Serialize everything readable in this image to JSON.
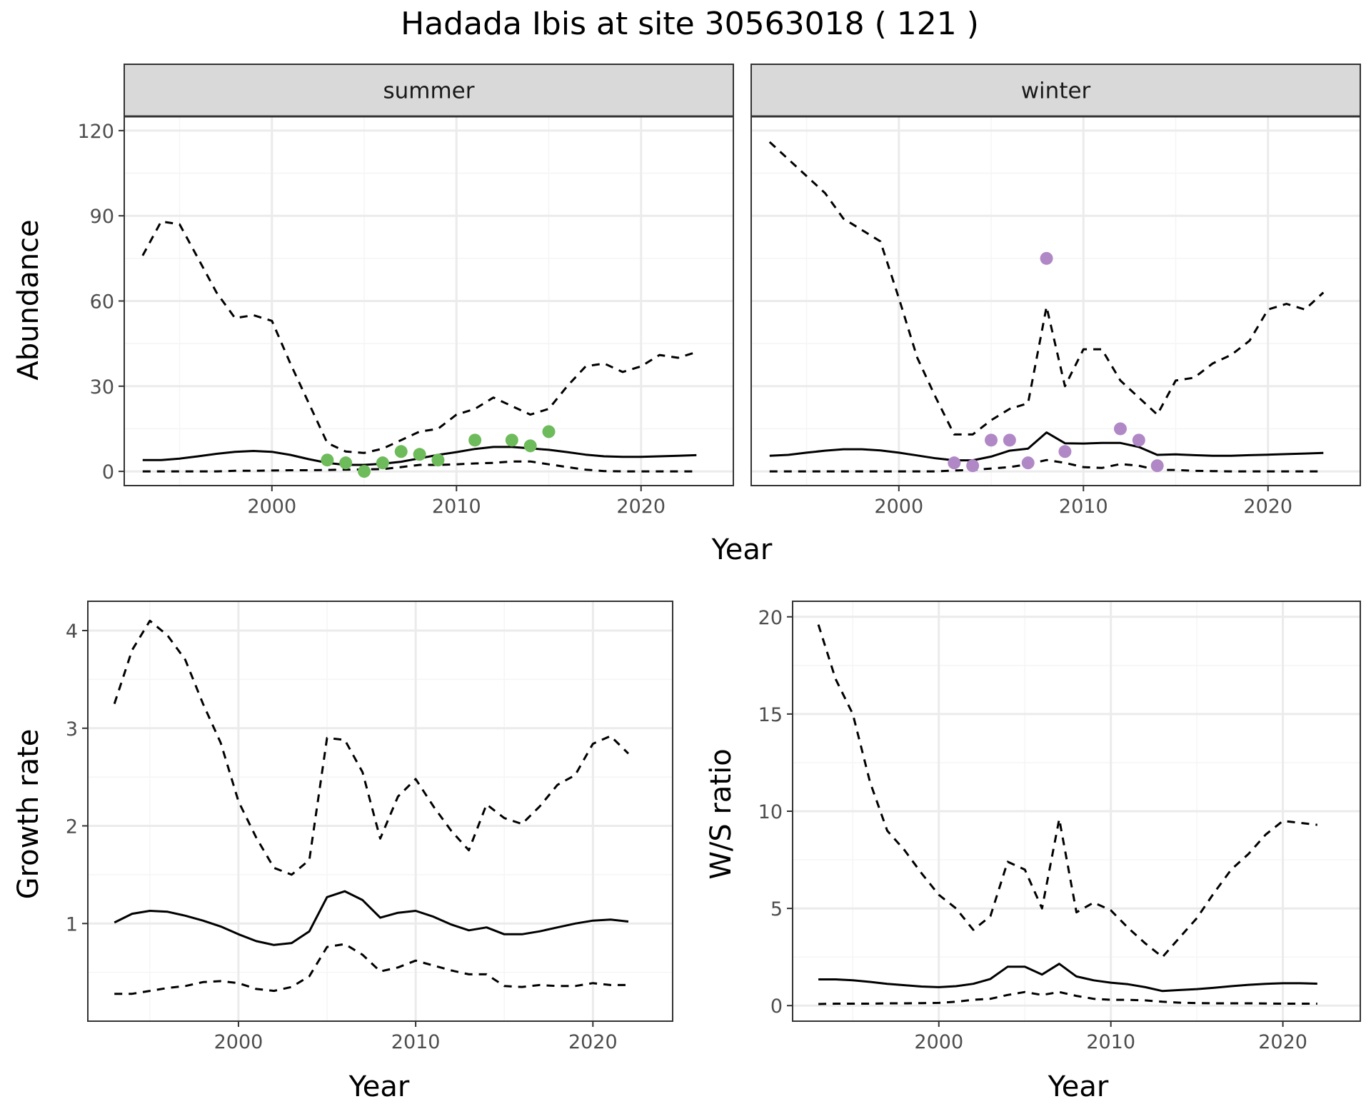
{
  "figure": {
    "title": "Hadada Ibis at site 30563018 ( 121 )"
  },
  "colors": {
    "summer_points": "#6dbb5a",
    "winter_points": "#b088c6",
    "lines": "#000000",
    "strip_fill": "#d9d9d9",
    "grid_major": "#ebebeb",
    "grid_minor": "#f5f5f5"
  },
  "chart_data": [
    {
      "type": "line",
      "panel": "summer",
      "facet_label": "summer",
      "xlabel": "Year",
      "ylabel": "Abundance",
      "xlim": [
        1992,
        2025
      ],
      "ylim": [
        -5,
        125
      ],
      "x_ticks": [
        2000,
        2010,
        2020
      ],
      "y_ticks": [
        0,
        30,
        60,
        90,
        120
      ],
      "grid": true,
      "series": [
        {
          "role": "mean",
          "style": "solid",
          "x": [
            1993,
            1994,
            1995,
            1996,
            1997,
            1998,
            1999,
            2000,
            2001,
            2002,
            2003,
            2004,
            2005,
            2006,
            2007,
            2008,
            2009,
            2010,
            2011,
            2012,
            2013,
            2014,
            2015,
            2016,
            2017,
            2018,
            2019,
            2020,
            2021,
            2022,
            2023
          ],
          "y": [
            4,
            4,
            4.5,
            5.3,
            6.2,
            6.9,
            7.2,
            6.9,
            5.8,
            4.3,
            3,
            2.3,
            2.3,
            2.7,
            3.4,
            4.6,
            5.8,
            6.8,
            7.9,
            8.6,
            8.6,
            8.1,
            7.6,
            6.8,
            5.9,
            5.3,
            5.1,
            5.1,
            5.3,
            5.5,
            5.7
          ]
        },
        {
          "role": "upper",
          "style": "dashed",
          "x": [
            1993,
            1994,
            1995,
            1996,
            1997,
            1998,
            1999,
            2000,
            2001,
            2002,
            2003,
            2004,
            2005,
            2006,
            2007,
            2008,
            2009,
            2010,
            2011,
            2012,
            2013,
            2014,
            2015,
            2016,
            2017,
            2018,
            2019,
            2020,
            2021,
            2022,
            2023
          ],
          "y": [
            76,
            88,
            87,
            75,
            63,
            54,
            55,
            53,
            38,
            24,
            10,
            7,
            6.5,
            8,
            11,
            14,
            15,
            20,
            22,
            26,
            23,
            20,
            22,
            30,
            37,
            38,
            35,
            37,
            41,
            40,
            42
          ]
        },
        {
          "role": "lower",
          "style": "dashed",
          "x": [
            1993,
            1994,
            1995,
            1996,
            1997,
            1998,
            1999,
            2000,
            2001,
            2002,
            2003,
            2004,
            2005,
            2006,
            2007,
            2008,
            2009,
            2010,
            2011,
            2012,
            2013,
            2014,
            2015,
            2016,
            2017,
            2018,
            2019,
            2020,
            2021,
            2022,
            2023
          ],
          "y": [
            0,
            0,
            0,
            0,
            0,
            0.2,
            0.2,
            0.3,
            0.4,
            0.4,
            0.5,
            0.6,
            0.7,
            0.8,
            1.5,
            2.3,
            2.3,
            2.5,
            2.8,
            3,
            3.5,
            3.5,
            2.5,
            1.5,
            0.6,
            0.1,
            0,
            0,
            0,
            0,
            0
          ]
        },
        {
          "role": "observed",
          "style": "points",
          "x": [
            2003,
            2004,
            2005,
            2006,
            2007,
            2008,
            2009,
            2011,
            2013,
            2014,
            2015
          ],
          "y": [
            4,
            3,
            0,
            3,
            7,
            6,
            4,
            11,
            11,
            9,
            14
          ]
        }
      ]
    },
    {
      "type": "line",
      "panel": "winter",
      "facet_label": "winter",
      "xlabel": "Year",
      "ylabel": "Abundance",
      "xlim": [
        1992,
        2025
      ],
      "ylim": [
        -5,
        125
      ],
      "x_ticks": [
        2000,
        2010,
        2020
      ],
      "y_ticks": [
        0,
        30,
        60,
        90,
        120
      ],
      "grid": true,
      "series": [
        {
          "role": "mean",
          "style": "solid",
          "x": [
            1993,
            1994,
            1995,
            1996,
            1997,
            1998,
            1999,
            2000,
            2001,
            2002,
            2003,
            2004,
            2005,
            2006,
            2007,
            2008,
            2009,
            2010,
            2011,
            2012,
            2013,
            2014,
            2015,
            2016,
            2017,
            2018,
            2019,
            2020,
            2021,
            2022,
            2023
          ],
          "y": [
            5.5,
            5.8,
            6.6,
            7.3,
            7.8,
            7.8,
            7.4,
            6.6,
            5.6,
            4.6,
            3.9,
            3.9,
            5.2,
            7.3,
            8,
            13.7,
            9.9,
            9.8,
            10,
            10,
            8.6,
            5.8,
            6,
            5.7,
            5.5,
            5.5,
            5.7,
            5.9,
            6.1,
            6.3,
            6.5
          ]
        },
        {
          "role": "upper",
          "style": "dashed",
          "x": [
            1993,
            1994,
            1995,
            1996,
            1997,
            1998,
            1999,
            2000,
            2001,
            2002,
            2003,
            2004,
            2005,
            2006,
            2007,
            2008,
            2009,
            2010,
            2011,
            2012,
            2013,
            2014,
            2015,
            2016,
            2017,
            2018,
            2019,
            2020,
            2021,
            2022,
            2023
          ],
          "y": [
            116,
            110,
            104,
            98,
            89,
            85,
            81,
            61,
            40,
            26,
            13,
            13,
            18,
            22,
            24,
            58,
            30,
            43,
            43,
            32,
            26,
            20,
            32,
            33,
            38,
            41,
            46,
            57,
            59,
            57,
            63
          ]
        },
        {
          "role": "lower",
          "style": "dashed",
          "x": [
            1993,
            1994,
            1995,
            1996,
            1997,
            1998,
            1999,
            2000,
            2001,
            2002,
            2003,
            2004,
            2005,
            2006,
            2007,
            2008,
            2009,
            2010,
            2011,
            2012,
            2013,
            2014,
            2015,
            2016,
            2017,
            2018,
            2019,
            2020,
            2021,
            2022,
            2023
          ],
          "y": [
            0,
            0,
            0,
            0,
            0,
            0,
            0,
            0,
            0,
            0,
            0.3,
            0.5,
            1,
            1.5,
            2.5,
            4,
            3,
            1.5,
            1.2,
            2.6,
            2,
            0.5,
            0.5,
            0.2,
            0.1,
            0,
            0,
            0,
            0,
            0,
            0
          ]
        },
        {
          "role": "observed",
          "style": "points",
          "x": [
            2003,
            2004,
            2005,
            2006,
            2007,
            2008,
            2009,
            2012,
            2013,
            2014
          ],
          "y": [
            3,
            2,
            11,
            11,
            3,
            75,
            7,
            15,
            11,
            2
          ]
        }
      ]
    },
    {
      "type": "line",
      "panel": "growth",
      "xlabel": "Year",
      "ylabel": "Growth rate",
      "xlim": [
        1991.5,
        2024.5
      ],
      "ylim": [
        0,
        4.3
      ],
      "x_ticks": [
        2000,
        2010,
        2020
      ],
      "y_ticks": [
        1,
        2,
        3,
        4
      ],
      "grid": true,
      "series": [
        {
          "role": "mean",
          "style": "solid",
          "x": [
            1993,
            1994,
            1995,
            1996,
            1997,
            1998,
            1999,
            2000,
            2001,
            2002,
            2003,
            2004,
            2005,
            2006,
            2007,
            2008,
            2009,
            2010,
            2011,
            2012,
            2013,
            2014,
            2015,
            2016,
            2017,
            2018,
            2019,
            2020,
            2021,
            2022
          ],
          "y": [
            1.01,
            1.1,
            1.13,
            1.12,
            1.08,
            1.03,
            0.97,
            0.89,
            0.82,
            0.78,
            0.8,
            0.92,
            1.27,
            1.33,
            1.24,
            1.06,
            1.11,
            1.13,
            1.07,
            0.99,
            0.93,
            0.96,
            0.89,
            0.89,
            0.92,
            0.96,
            1,
            1.03,
            1.04,
            1.02
          ]
        },
        {
          "role": "upper",
          "style": "dashed",
          "x": [
            1993,
            1994,
            1995,
            1996,
            1997,
            1998,
            1999,
            2000,
            2001,
            2002,
            2003,
            2004,
            2005,
            2006,
            2007,
            2008,
            2009,
            2010,
            2011,
            2012,
            2013,
            2014,
            2015,
            2016,
            2017,
            2018,
            2019,
            2020,
            2021,
            2022
          ],
          "y": [
            3.25,
            3.8,
            4.1,
            3.95,
            3.7,
            3.25,
            2.85,
            2.25,
            1.88,
            1.57,
            1.5,
            1.65,
            2.9,
            2.88,
            2.55,
            1.87,
            2.3,
            2.48,
            2.2,
            1.95,
            1.75,
            2.22,
            2.08,
            2.02,
            2.2,
            2.42,
            2.52,
            2.84,
            2.92,
            2.74
          ]
        },
        {
          "role": "lower",
          "style": "dashed",
          "x": [
            1993,
            1994,
            1995,
            1996,
            1997,
            1998,
            1999,
            2000,
            2001,
            2002,
            2003,
            2004,
            2005,
            2006,
            2007,
            2008,
            2009,
            2010,
            2011,
            2012,
            2013,
            2014,
            2015,
            2016,
            2017,
            2018,
            2019,
            2020,
            2021,
            2022
          ],
          "y": [
            0.28,
            0.28,
            0.31,
            0.34,
            0.36,
            0.4,
            0.41,
            0.39,
            0.33,
            0.31,
            0.35,
            0.46,
            0.76,
            0.79,
            0.68,
            0.51,
            0.55,
            0.62,
            0.57,
            0.52,
            0.48,
            0.48,
            0.36,
            0.35,
            0.37,
            0.36,
            0.36,
            0.39,
            0.37,
            0.37
          ]
        }
      ]
    },
    {
      "type": "line",
      "panel": "ratio",
      "xlabel": "Year",
      "ylabel": "W/S ratio",
      "xlim": [
        1991.5,
        2024.5
      ],
      "ylim": [
        -0.8,
        20.8
      ],
      "x_ticks": [
        2000,
        2010,
        2020
      ],
      "y_ticks": [
        0,
        5,
        10,
        15,
        20
      ],
      "grid": true,
      "series": [
        {
          "role": "mean",
          "style": "solid",
          "x": [
            1993,
            1994,
            1995,
            1996,
            1997,
            1998,
            1999,
            2000,
            2001,
            2002,
            2003,
            2004,
            2005,
            2006,
            2007,
            2008,
            2009,
            2010,
            2011,
            2012,
            2013,
            2014,
            2015,
            2016,
            2017,
            2018,
            2019,
            2020,
            2021,
            2022
          ],
          "y": [
            1.35,
            1.35,
            1.3,
            1.22,
            1.12,
            1.05,
            0.98,
            0.95,
            1,
            1.12,
            1.37,
            2,
            2,
            1.6,
            2.15,
            1.5,
            1.3,
            1.18,
            1.1,
            0.95,
            0.75,
            0.8,
            0.85,
            0.92,
            1,
            1.07,
            1.12,
            1.15,
            1.15,
            1.13
          ]
        },
        {
          "role": "upper",
          "style": "dashed",
          "x": [
            1993,
            1994,
            1995,
            1996,
            1997,
            1998,
            1999,
            2000,
            2001,
            2002,
            2003,
            2004,
            2005,
            2006,
            2007,
            2008,
            2009,
            2010,
            2011,
            2012,
            2013,
            2014,
            2015,
            2016,
            2017,
            2018,
            2019,
            2020,
            2021,
            2022
          ],
          "y": [
            19.6,
            16.8,
            15,
            11.5,
            9,
            8,
            6.8,
            5.7,
            5,
            3.9,
            4.6,
            7.4,
            7,
            5,
            9.6,
            4.8,
            5.3,
            4.9,
            4,
            3.2,
            2.5,
            3.5,
            4.5,
            5.8,
            7,
            7.8,
            8.8,
            9.5,
            9.4,
            9.3
          ]
        },
        {
          "role": "lower",
          "style": "dashed",
          "x": [
            1993,
            1994,
            1995,
            1996,
            1997,
            1998,
            1999,
            2000,
            2001,
            2002,
            2003,
            2004,
            2005,
            2006,
            2007,
            2008,
            2009,
            2010,
            2011,
            2012,
            2013,
            2014,
            2015,
            2016,
            2017,
            2018,
            2019,
            2020,
            2021,
            2022
          ],
          "y": [
            0.08,
            0.1,
            0.1,
            0.1,
            0.12,
            0.12,
            0.13,
            0.14,
            0.2,
            0.3,
            0.35,
            0.55,
            0.7,
            0.55,
            0.7,
            0.5,
            0.35,
            0.3,
            0.3,
            0.27,
            0.2,
            0.15,
            0.13,
            0.12,
            0.12,
            0.12,
            0.11,
            0.1,
            0.1,
            0.1
          ]
        }
      ]
    }
  ]
}
